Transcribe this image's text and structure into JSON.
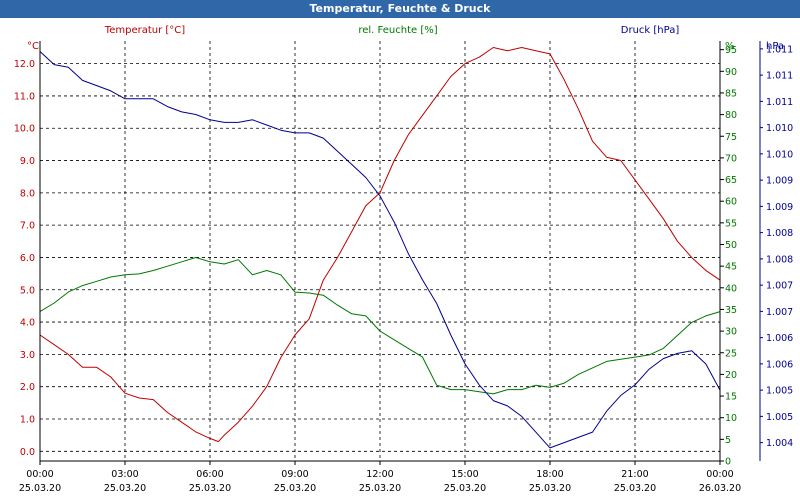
{
  "window": {
    "title": "Temperatur, Feuchte & Druck"
  },
  "colors": {
    "temperature": "#c00000",
    "humidity": "#007800",
    "pressure": "#000090",
    "grid": "#000000",
    "title_bar": "#2f67a8"
  },
  "chart_data": {
    "type": "line",
    "title": "Temperatur, Feuchte & Druck",
    "grid": true,
    "x": {
      "range": [
        0,
        24
      ],
      "ticks": [
        {
          "value": 0,
          "time": "00:00",
          "date": "25.03.20"
        },
        {
          "value": 3,
          "time": "03:00",
          "date": "25.03.20"
        },
        {
          "value": 6,
          "time": "06:00",
          "date": "25.03.20"
        },
        {
          "value": 9,
          "time": "09:00",
          "date": "25.03.20"
        },
        {
          "value": 12,
          "time": "12:00",
          "date": "25.03.20"
        },
        {
          "value": 15,
          "time": "15:00",
          "date": "25.03.20"
        },
        {
          "value": 18,
          "time": "18:00",
          "date": "25.03.20"
        },
        {
          "value": 21,
          "time": "21:00",
          "date": "25.03.20"
        },
        {
          "value": 24,
          "time": "00:00",
          "date": "26.03.20"
        }
      ]
    },
    "axes": {
      "temperature": {
        "label": "Temperatur [°C]",
        "unit": "°C",
        "side": "left",
        "range": [
          -0.3,
          12.7
        ],
        "ticks": [
          "0.0",
          "1.0",
          "2.0",
          "3.0",
          "4.0",
          "5.0",
          "6.0",
          "7.0",
          "8.0",
          "9.0",
          "10.0",
          "11.0",
          "12.0"
        ]
      },
      "humidity": {
        "label": "rel. Feuchte [%]",
        "unit": "%",
        "side": "right",
        "range": [
          0,
          97
        ],
        "ticks": [
          "0",
          "5",
          "10",
          "15",
          "20",
          "25",
          "30",
          "35",
          "40",
          "45",
          "50",
          "55",
          "60",
          "65",
          "70",
          "75",
          "80",
          "85",
          "90",
          "95"
        ]
      },
      "pressure": {
        "label": "Druck [hPa]",
        "unit": "hPa",
        "side": "right",
        "range": [
          1003.65,
          1011.65
        ],
        "tick_values": [
          1004,
          1004.5,
          1005,
          1005.5,
          1006,
          1006.5,
          1007,
          1007.5,
          1008,
          1008.5,
          1009,
          1009.5,
          1010,
          1010.5,
          1011,
          1011.5
        ],
        "tick_labels": [
          "1.004",
          "1.005",
          "1.005",
          "1.006",
          "1.006",
          "1.007",
          "1.007",
          "1.008",
          "1.008",
          "1.009",
          "1.009",
          "1.010",
          "1.010",
          "1.011",
          "1.011",
          "1.011"
        ]
      }
    },
    "series": [
      {
        "name": "Temperatur",
        "axis": "temperature",
        "x": [
          0,
          0.5,
          1,
          1.5,
          2,
          2.5,
          3,
          3.5,
          4,
          4.5,
          5,
          5.5,
          6,
          6.3,
          6.5,
          7,
          7.5,
          8,
          8.5,
          9,
          9.5,
          10,
          10.5,
          11,
          11.5,
          12,
          12.5,
          13,
          13.5,
          14,
          14.5,
          15,
          15.5,
          16,
          16.5,
          17,
          17.5,
          18,
          18.5,
          19,
          19.5,
          20,
          20.5,
          21,
          21.5,
          22,
          22.5,
          23,
          23.5,
          24
        ],
        "values": [
          3.6,
          3.3,
          3.0,
          2.6,
          2.6,
          2.3,
          1.8,
          1.65,
          1.6,
          1.2,
          0.9,
          0.6,
          0.4,
          0.3,
          0.5,
          0.9,
          1.4,
          2.0,
          2.9,
          3.6,
          4.1,
          5.3,
          6.0,
          6.8,
          7.6,
          8.0,
          9.0,
          9.8,
          10.4,
          11.0,
          11.6,
          12.0,
          12.2,
          12.5,
          12.4,
          12.5,
          12.4,
          12.3,
          11.5,
          10.6,
          9.6,
          9.1,
          9.0,
          8.4,
          7.8,
          7.2,
          6.5,
          6.0,
          5.6,
          5.3
        ]
      },
      {
        "name": "rel. Feuchte",
        "axis": "humidity",
        "x": [
          0,
          0.5,
          1,
          1.5,
          2,
          2.5,
          3,
          3.5,
          4,
          4.5,
          5,
          5.5,
          6,
          6.5,
          7,
          7.5,
          8,
          8.5,
          9,
          9.5,
          10,
          10.5,
          11,
          11.5,
          12,
          12.5,
          13,
          13.5,
          14,
          14.5,
          15,
          15.5,
          16,
          16.5,
          17,
          17.5,
          18,
          18.5,
          19,
          19.5,
          20,
          20.5,
          21,
          21.5,
          22,
          22.5,
          23,
          23.5,
          24
        ],
        "values": [
          34.5,
          36.5,
          39,
          40.5,
          41.5,
          42.5,
          43,
          43.2,
          44,
          45,
          46,
          47,
          46,
          45.5,
          46.5,
          43,
          44,
          43,
          39,
          38.8,
          38.3,
          36,
          34,
          33.5,
          30,
          28,
          26,
          24,
          17.5,
          16.5,
          16.5,
          16,
          15.5,
          16.5,
          16.5,
          17.5,
          17,
          18,
          20,
          21.5,
          23,
          23.5,
          24,
          24.5,
          26,
          29,
          32,
          33.5,
          34.5
        ]
      },
      {
        "name": "Druck",
        "axis": "pressure",
        "x": [
          0,
          0.5,
          1,
          1.5,
          2,
          2.5,
          3,
          3.5,
          4,
          4.5,
          5,
          5.5,
          6,
          6.5,
          7,
          7.5,
          8,
          8.5,
          9,
          9.5,
          10,
          10.5,
          11,
          11.5,
          12,
          12.5,
          13,
          13.5,
          14,
          14.5,
          15,
          15.5,
          16,
          16.5,
          17,
          17.5,
          18,
          18.5,
          19,
          19.5,
          20,
          20.5,
          21,
          21.5,
          22,
          22.5,
          23,
          23.5,
          24
        ],
        "values": [
          1011.45,
          1011.2,
          1011.15,
          1010.9,
          1010.8,
          1010.7,
          1010.55,
          1010.55,
          1010.55,
          1010.4,
          1010.3,
          1010.25,
          1010.15,
          1010.1,
          1010.1,
          1010.15,
          1010.05,
          1009.95,
          1009.9,
          1009.9,
          1009.8,
          1009.55,
          1009.3,
          1009.05,
          1008.7,
          1008.2,
          1007.6,
          1007.1,
          1006.65,
          1006.05,
          1005.5,
          1005.1,
          1004.8,
          1004.7,
          1004.5,
          1004.2,
          1003.9,
          1004.0,
          1004.1,
          1004.2,
          1004.6,
          1004.9,
          1005.1,
          1005.4,
          1005.6,
          1005.7,
          1005.75,
          1005.5,
          1005.0
        ]
      }
    ]
  }
}
